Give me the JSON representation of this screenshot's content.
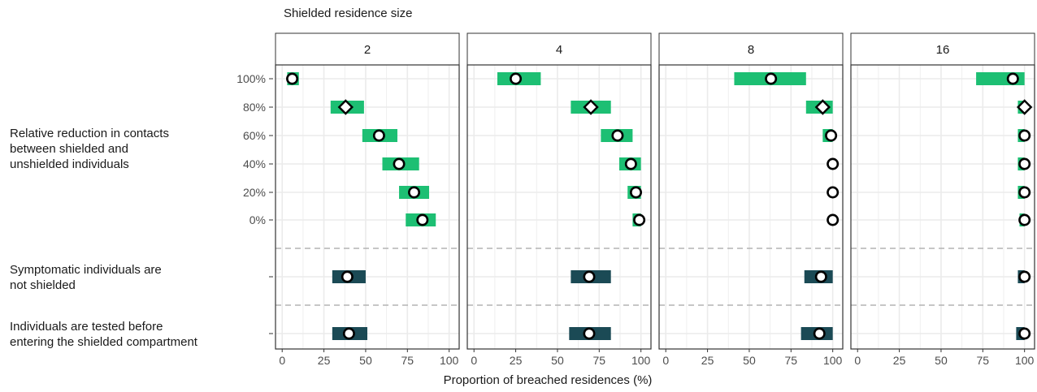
{
  "chart_data": {
    "type": "interval-dot",
    "facet_title": "Shielded residence size",
    "xlabel": "Proportion of breached residences (%)",
    "x_ticks": [
      0,
      25,
      50,
      75,
      100
    ],
    "xlim": [
      -4,
      106
    ],
    "y_tick_labels": [
      "100%",
      "80%",
      "60%",
      "40%",
      "20%",
      "0%",
      "",
      ""
    ],
    "row_group_labels": [
      {
        "lines": [
          "Relative reduction in contacts",
          "between shielded and",
          "unshielded individuals"
        ]
      },
      {
        "lines": [
          "Symptomatic individuals are",
          "not shielded"
        ]
      },
      {
        "lines": [
          "Individuals are tested before",
          "entering the shielded compartment"
        ]
      }
    ],
    "colors": {
      "contact_reduction": "#1dbf73",
      "intervention": "#1b4a55",
      "marker_fill": "#ffffff",
      "marker_stroke": "#000000",
      "grid": "#ebebeb",
      "separator": "#b3b3b3"
    },
    "facets": [
      {
        "label": "2",
        "rows": [
          {
            "low": 3,
            "high": 10,
            "point": 6,
            "marker": "circle"
          },
          {
            "low": 29,
            "high": 49,
            "point": 38,
            "marker": "diamond"
          },
          {
            "low": 48,
            "high": 69,
            "point": 58,
            "marker": "circle"
          },
          {
            "low": 60,
            "high": 82,
            "point": 70,
            "marker": "circle"
          },
          {
            "low": 70,
            "high": 88,
            "point": 79,
            "marker": "circle"
          },
          {
            "low": 74,
            "high": 92,
            "point": 84,
            "marker": "circle"
          },
          {
            "low": 30,
            "high": 50,
            "point": 39,
            "marker": "circle"
          },
          {
            "low": 30,
            "high": 51,
            "point": 40,
            "marker": "circle"
          }
        ]
      },
      {
        "label": "4",
        "rows": [
          {
            "low": 14,
            "high": 40,
            "point": 25,
            "marker": "circle"
          },
          {
            "low": 58,
            "high": 82,
            "point": 70,
            "marker": "diamond"
          },
          {
            "low": 76,
            "high": 95,
            "point": 86,
            "marker": "circle"
          },
          {
            "low": 87,
            "high": 100,
            "point": 94,
            "marker": "circle"
          },
          {
            "low": 92,
            "high": 100,
            "point": 97,
            "marker": "circle"
          },
          {
            "low": 95,
            "high": 100,
            "point": 99,
            "marker": "circle"
          },
          {
            "low": 58,
            "high": 82,
            "point": 69,
            "marker": "circle"
          },
          {
            "low": 57,
            "high": 82,
            "point": 69,
            "marker": "circle"
          }
        ]
      },
      {
        "label": "8",
        "rows": [
          {
            "low": 41,
            "high": 84,
            "point": 63,
            "marker": "circle"
          },
          {
            "low": 84,
            "high": 100,
            "point": 94,
            "marker": "diamond"
          },
          {
            "low": 94,
            "high": 100,
            "point": 99,
            "marker": "circle"
          },
          {
            "low": 100,
            "high": 100,
            "point": 100,
            "marker": "circle"
          },
          {
            "low": 100,
            "high": 100,
            "point": 100,
            "marker": "circle"
          },
          {
            "low": 100,
            "high": 100,
            "point": 100,
            "marker": "circle"
          },
          {
            "low": 83,
            "high": 100,
            "point": 93,
            "marker": "circle"
          },
          {
            "low": 81,
            "high": 100,
            "point": 92,
            "marker": "circle"
          }
        ]
      },
      {
        "label": "16",
        "rows": [
          {
            "low": 71,
            "high": 100,
            "point": 93,
            "marker": "circle"
          },
          {
            "low": 96,
            "high": 100,
            "point": 100,
            "marker": "diamond"
          },
          {
            "low": 96,
            "high": 100,
            "point": 100,
            "marker": "circle"
          },
          {
            "low": 96,
            "high": 100,
            "point": 100,
            "marker": "circle"
          },
          {
            "low": 96,
            "high": 100,
            "point": 100,
            "marker": "circle"
          },
          {
            "low": 97,
            "high": 100,
            "point": 100,
            "marker": "circle"
          },
          {
            "low": 96,
            "high": 100,
            "point": 100,
            "marker": "circle"
          },
          {
            "low": 95,
            "high": 100,
            "point": 100,
            "marker": "circle"
          }
        ]
      }
    ]
  }
}
